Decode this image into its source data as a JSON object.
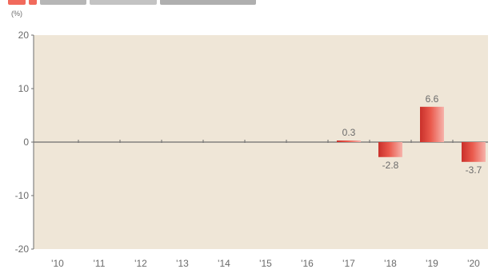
{
  "chart_data": {
    "type": "bar",
    "title": "",
    "xlabel": "",
    "ylabel": "",
    "unit_label": "(%)",
    "categories": [
      "'10",
      "'11",
      "'12",
      "'13",
      "'14",
      "'15",
      "'16",
      "'17",
      "'18",
      "'19",
      "'20"
    ],
    "series": [
      {
        "values": [
          null,
          null,
          null,
          null,
          null,
          null,
          null,
          0.3,
          -2.8,
          6.6,
          -3.7
        ],
        "value_labels": [
          "",
          "",
          "",
          "",
          "",
          "",
          "",
          "0.3",
          "-2.8",
          "6.6",
          "-3.7"
        ]
      }
    ],
    "ylim": [
      -20,
      20
    ],
    "yticks": [
      -20,
      -10,
      0,
      10,
      20
    ],
    "ytick_labels": [
      "-20",
      "-10",
      "0",
      "10",
      "20"
    ],
    "grid": false,
    "legend": "none",
    "colors": {
      "plot_background": "#efe6d7",
      "bar": "#ea5a4d",
      "bar_dark": "#c9302a",
      "bar_light": "#f6b3ab",
      "axis": "#6e6e6e",
      "text": "#6b6b6b"
    }
  }
}
